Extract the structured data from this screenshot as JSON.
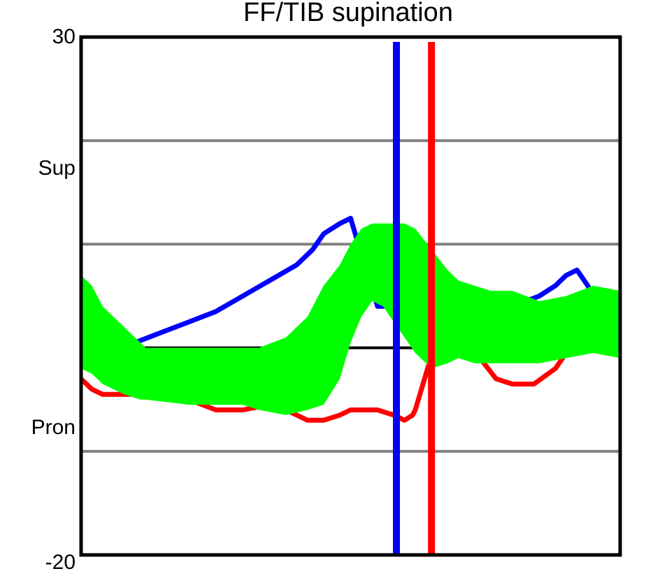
{
  "chart_data": {
    "type": "line",
    "title": "FF/TIB supination",
    "xlabel": "",
    "ylabel": "",
    "x_range": [
      0,
      100
    ],
    "ylim": [
      -20,
      30
    ],
    "ytick_labels": [
      {
        "value": 30,
        "text": "30"
      },
      {
        "value": -20,
        "text": "-20"
      }
    ],
    "annotations": [
      {
        "text": "Sup",
        "y": 20
      },
      {
        "text": "Pron",
        "y": -5
      }
    ],
    "gridlines_y": [
      20,
      10,
      -10
    ],
    "zero_line": 0,
    "grid": true,
    "colors": {
      "blue": "#0000ff",
      "red": "#ff0000",
      "band": "#00ff00",
      "grid": "#808080",
      "zero": "#000000"
    },
    "normal_band": {
      "color": "#00ff00",
      "x": [
        0,
        2,
        4,
        8,
        11,
        12,
        20,
        25,
        30,
        33,
        38,
        42,
        45,
        48,
        50,
        52,
        54,
        56,
        58,
        60,
        62,
        65,
        68,
        70,
        73,
        76,
        80,
        85,
        90,
        95,
        100
      ],
      "upper": [
        7,
        6,
        4,
        2,
        0.5,
        0,
        0,
        0,
        0,
        0,
        1,
        3,
        6,
        8,
        10,
        11.5,
        12,
        12,
        12,
        12,
        11.5,
        9.5,
        7.5,
        6.5,
        6,
        5.5,
        5.5,
        4.5,
        5,
        6,
        5.5
      ],
      "lower": [
        -2,
        -2.5,
        -3.5,
        -4.5,
        -5,
        -5,
        -5.5,
        -5.5,
        -5.5,
        -6,
        -6.5,
        -6,
        -5.5,
        -3,
        0.5,
        3,
        4.5,
        4,
        2.5,
        1,
        -0.5,
        -2,
        -1.5,
        -1,
        -1.5,
        -1.5,
        -1.5,
        -1.5,
        -1,
        -0.5,
        -1
      ]
    },
    "series": [
      {
        "color": "#0000ff",
        "x": [
          0,
          2,
          5,
          10,
          15,
          20,
          25,
          30,
          35,
          40,
          43,
          45,
          48,
          50,
          52,
          55,
          58,
          60,
          62,
          65,
          68,
          72,
          76,
          80,
          85,
          88,
          90,
          92,
          94,
          96,
          98,
          100
        ],
        "y": [
          2,
          1,
          0.5,
          0.5,
          1.5,
          2.5,
          3.5,
          5,
          6.5,
          8,
          9.5,
          11,
          12,
          12.5,
          9,
          4,
          4,
          5,
          5.5,
          4.5,
          3.5,
          3.5,
          4,
          4,
          5,
          6,
          7,
          7.5,
          6,
          4,
          3,
          3.5
        ]
      },
      {
        "color": "#ff0000",
        "x": [
          0,
          2,
          4,
          6,
          8,
          10,
          12,
          14,
          16,
          20,
          25,
          30,
          35,
          38,
          40,
          42,
          45,
          48,
          50,
          52,
          55,
          58,
          60,
          61.5,
          62,
          64,
          66,
          70,
          74,
          77,
          80,
          84,
          88,
          92,
          96,
          100
        ],
        "y": [
          -3,
          -4,
          -4.5,
          -4.5,
          -4.5,
          -4.5,
          -4,
          -4,
          -4.5,
          -5,
          -6,
          -6,
          -5.5,
          -6,
          -6.5,
          -7,
          -7,
          -6.5,
          -6,
          -6,
          -6,
          -6.5,
          -7,
          -6.5,
          -6,
          -2.5,
          1,
          2,
          -1,
          -3,
          -3.5,
          -3.5,
          -2,
          1,
          2,
          1.5
        ]
      }
    ],
    "vertical_lines": [
      {
        "x": 58.5,
        "color": "#0000ff"
      },
      {
        "x": 65,
        "color": "#ff0000"
      }
    ]
  }
}
